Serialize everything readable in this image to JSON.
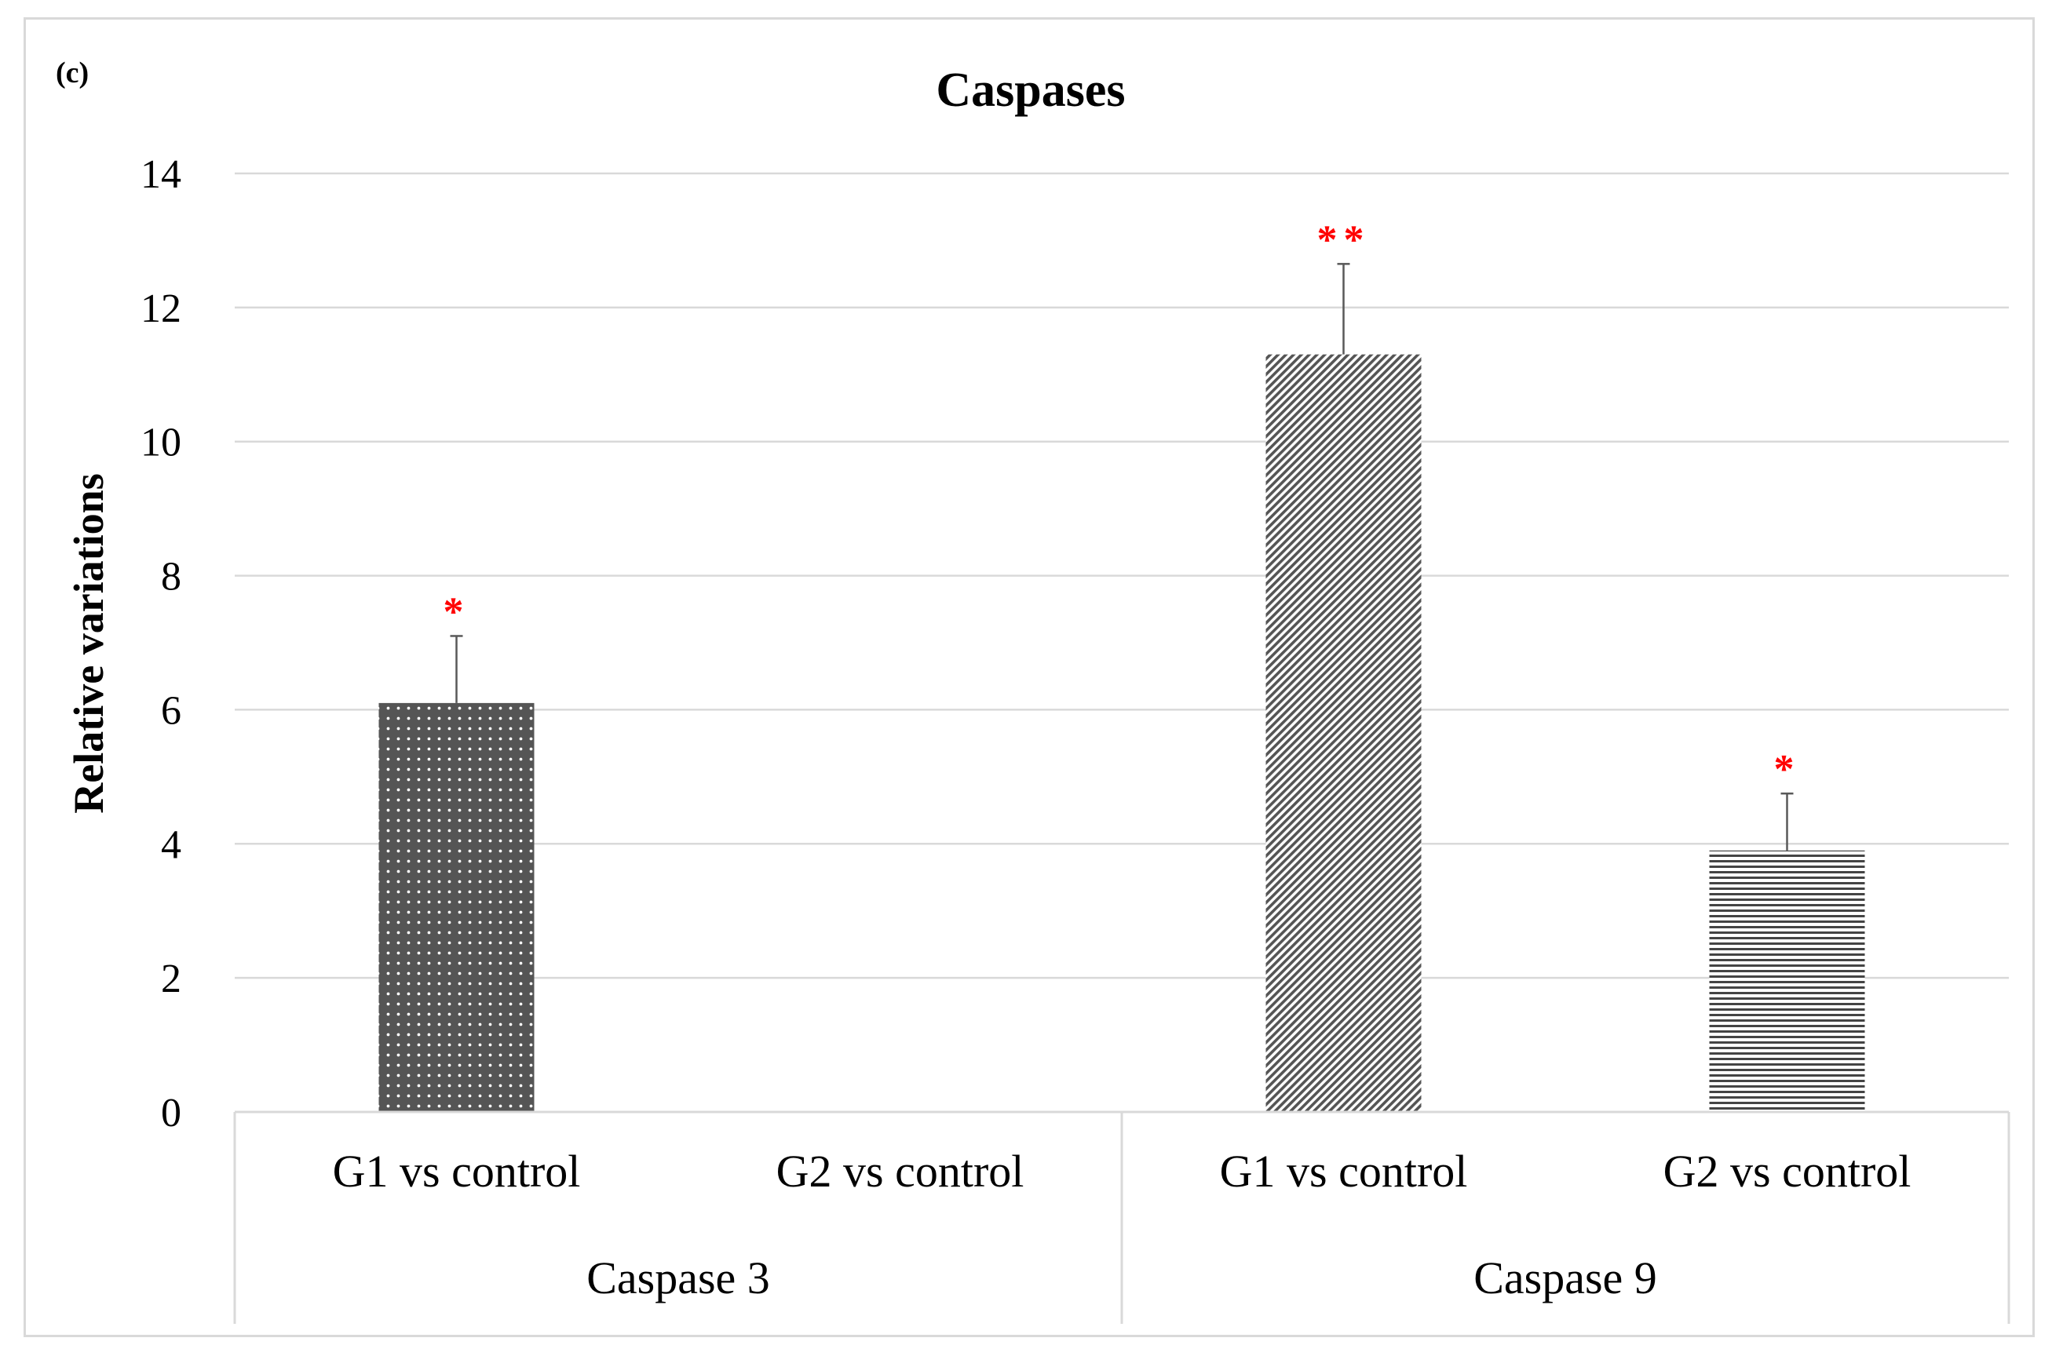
{
  "panel_label": "(c)",
  "chart_data": {
    "type": "bar",
    "title": "Caspases",
    "xlabel": "",
    "ylabel": "Relative variations",
    "ylim": [
      0,
      14
    ],
    "yticks": [
      0,
      2,
      4,
      6,
      8,
      10,
      12,
      14
    ],
    "grid": true,
    "legend": "none",
    "groups": [
      {
        "name": "Caspase 3",
        "bars": [
          {
            "category": "G1 vs control",
            "value": 6.1,
            "error": 1.0,
            "significance": "*",
            "pattern": "dots"
          },
          {
            "category": "G2 vs control",
            "value": 0,
            "error": null,
            "significance": "",
            "pattern": "none"
          }
        ]
      },
      {
        "name": "Caspase 9",
        "bars": [
          {
            "category": "G1 vs control",
            "value": 11.3,
            "error": 1.35,
            "significance": "**",
            "pattern": "diagonal"
          },
          {
            "category": "G2 vs control",
            "value": 3.9,
            "error": 0.85,
            "significance": "*",
            "pattern": "horizontal"
          }
        ]
      }
    ]
  },
  "colors": {
    "bar_dark": "#555555",
    "gridline": "#d9d9d9",
    "significance": "#ff0000",
    "text": "#000000"
  }
}
